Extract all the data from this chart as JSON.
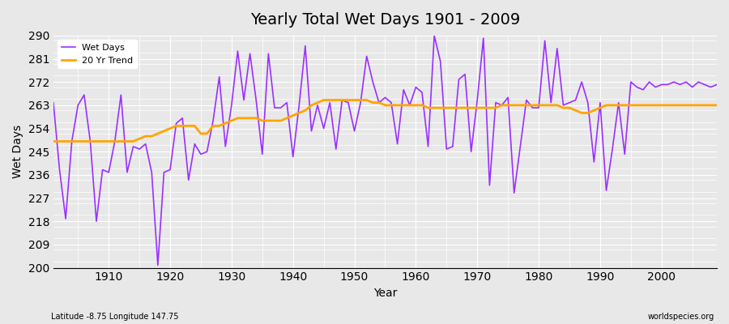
{
  "title": "Yearly Total Wet Days 1901 - 2009",
  "xlabel": "Year",
  "ylabel": "Wet Days",
  "subtitle_left": "Latitude -8.75 Longitude 147.75",
  "subtitle_right": "worldspecies.org",
  "ylim": [
    200,
    290
  ],
  "yticks": [
    200,
    209,
    218,
    227,
    236,
    245,
    254,
    263,
    272,
    281,
    290
  ],
  "background_color": "#e8e8e8",
  "wet_days_color": "#9B30FF",
  "trend_color": "#FFA500",
  "years": [
    1901,
    1902,
    1903,
    1904,
    1905,
    1906,
    1907,
    1908,
    1909,
    1910,
    1911,
    1912,
    1913,
    1914,
    1915,
    1916,
    1917,
    1918,
    1919,
    1920,
    1921,
    1922,
    1923,
    1924,
    1925,
    1926,
    1927,
    1928,
    1929,
    1930,
    1931,
    1932,
    1933,
    1934,
    1935,
    1936,
    1937,
    1938,
    1939,
    1940,
    1941,
    1942,
    1943,
    1944,
    1945,
    1946,
    1947,
    1948,
    1949,
    1950,
    1951,
    1952,
    1953,
    1954,
    1955,
    1956,
    1957,
    1958,
    1959,
    1960,
    1961,
    1962,
    1963,
    1964,
    1965,
    1966,
    1967,
    1968,
    1969,
    1970,
    1971,
    1972,
    1973,
    1974,
    1975,
    1976,
    1977,
    1978,
    1979,
    1980,
    1981,
    1982,
    1983,
    1984,
    1985,
    1986,
    1987,
    1988,
    1989,
    1990,
    1991,
    1992,
    1993,
    1994,
    1995,
    1996,
    1997,
    1998,
    1999,
    2000,
    2001,
    2002,
    2003,
    2004,
    2005,
    2006,
    2007,
    2008,
    2009
  ],
  "wet_days": [
    264,
    238,
    219,
    249,
    263,
    267,
    249,
    218,
    238,
    237,
    249,
    267,
    237,
    247,
    246,
    248,
    237,
    201,
    237,
    238,
    256,
    258,
    234,
    248,
    244,
    245,
    257,
    274,
    247,
    263,
    284,
    265,
    283,
    265,
    244,
    283,
    262,
    262,
    264,
    243,
    263,
    286,
    253,
    263,
    254,
    264,
    246,
    265,
    264,
    253,
    264,
    282,
    272,
    264,
    266,
    264,
    248,
    269,
    263,
    270,
    268,
    247,
    290,
    280,
    246,
    247,
    273,
    275,
    245,
    265,
    289,
    232,
    264,
    263,
    266,
    229,
    247,
    265,
    262,
    262,
    288,
    264,
    285,
    263,
    264,
    265,
    272,
    264,
    241,
    264,
    230,
    246,
    264,
    244,
    272,
    270,
    269,
    272,
    270,
    271,
    271,
    272,
    271,
    272,
    270,
    272,
    271,
    270,
    271
  ],
  "trend_years": [
    1901,
    1902,
    1903,
    1904,
    1905,
    1906,
    1907,
    1908,
    1909,
    1910,
    1911,
    1912,
    1913,
    1914,
    1915,
    1916,
    1917,
    1918,
    1919,
    1920,
    1921,
    1922,
    1923,
    1924,
    1925,
    1926,
    1927,
    1928,
    1929,
    1930,
    1931,
    1932,
    1933,
    1934,
    1935,
    1936,
    1937,
    1938,
    1939,
    1940,
    1941,
    1942,
    1943,
    1944,
    1945,
    1946,
    1947,
    1948,
    1949,
    1950,
    1951,
    1952,
    1953,
    1954,
    1955,
    1956,
    1957,
    1958,
    1959,
    1960,
    1961,
    1962,
    1963,
    1964,
    1965,
    1966,
    1967,
    1968,
    1969,
    1970,
    1971,
    1972,
    1973,
    1974,
    1975,
    1976,
    1977,
    1978,
    1979,
    1980,
    1981,
    1982,
    1983,
    1984,
    1985,
    1986,
    1987,
    1988,
    1989,
    1990,
    1991,
    1992,
    1993,
    1994,
    1995,
    1996,
    1997,
    1998,
    1999,
    2000,
    2001,
    2002,
    2003,
    2004,
    2005,
    2006,
    2007,
    2008,
    2009
  ],
  "trend_values": [
    249,
    249,
    249,
    249,
    249,
    249,
    249,
    249,
    249,
    249,
    249,
    249,
    249,
    249,
    250,
    251,
    251,
    252,
    253,
    254,
    255,
    255,
    255,
    255,
    252,
    252,
    255,
    255,
    256,
    257,
    258,
    258,
    258,
    258,
    257,
    257,
    257,
    257,
    258,
    259,
    260,
    261,
    263,
    264,
    265,
    265,
    265,
    265,
    265,
    265,
    265,
    265,
    264,
    264,
    263,
    263,
    263,
    263,
    263,
    263,
    263,
    262,
    262,
    262,
    262,
    262,
    262,
    262,
    262,
    262,
    262,
    262,
    262,
    263,
    263,
    263,
    263,
    263,
    263,
    263,
    263,
    263,
    263,
    262,
    262,
    261,
    260,
    260,
    261,
    262,
    263,
    263,
    263,
    263,
    263,
    263,
    263,
    263,
    263,
    263,
    263,
    263,
    263,
    263,
    263,
    263,
    263,
    263,
    263
  ]
}
